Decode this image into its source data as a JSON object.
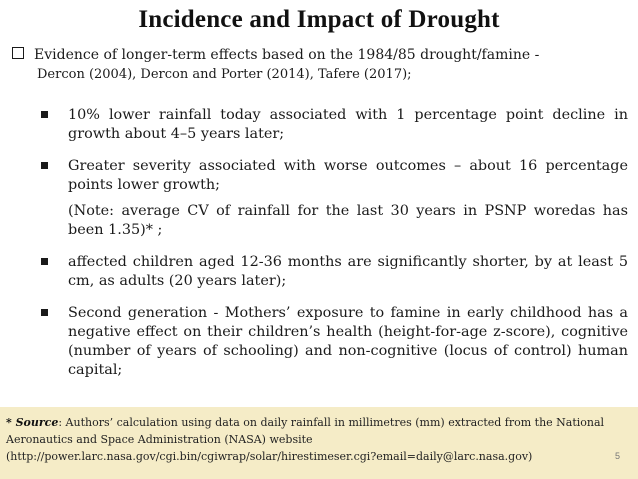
{
  "title": "Incidence and Impact of Drought",
  "evidence": {
    "line1": "Evidence of longer-term effects based on the 1984/85 drought/famine -",
    "line2": "Dercon (2004), Dercon and Porter (2014), Tafere (2017);"
  },
  "bullets": {
    "b1": "10% lower rainfall today associated with 1 percentage point decline in growth about 4–5 years later;",
    "b2": "Greater severity associated with worse outcomes – about 16 percentage points lower growth;",
    "note": "(Note: average CV of rainfall for the last 30 years in PSNP woredas has been 1.35)* ;",
    "b3": "affected children aged 12-36 months are significantly shorter, by at least 5 cm, as adults (20 years later);",
    "b4": "Second generation - Mothers’ exposure to famine in early childhood has a negative effect on their children’s health (height-for-age z-score), cognitive (number of years of schooling) and non-cognitive (locus of control) human capital;"
  },
  "footnote": {
    "label": "* Source",
    "text": ": Authors’ calculation using data on daily rainfall in millimetres (mm) extracted from the National Aeronautics and Space Administration (NASA) website (http://power.larc.nasa.gov/cgi.bin/cgiwrap/solar/hirestimeser.cgi?email=daily@larc.nasa.gov)"
  },
  "page_number": "5"
}
